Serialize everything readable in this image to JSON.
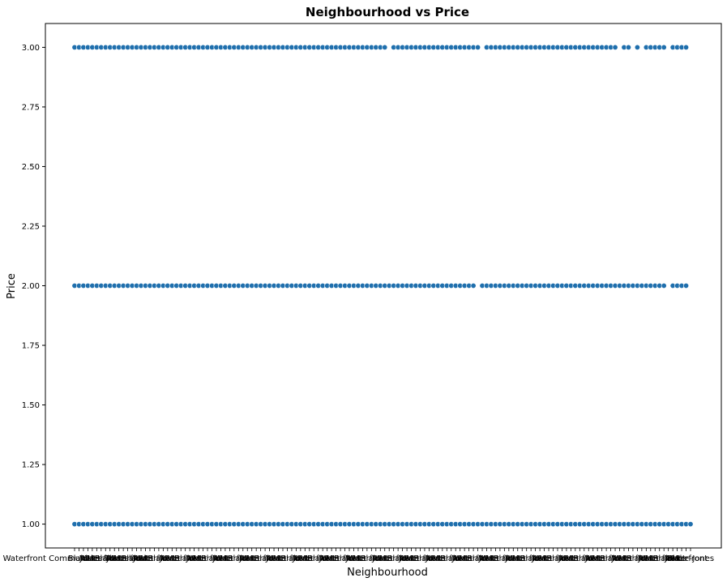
{
  "chart_data": {
    "type": "scatter",
    "title": "Neighbourhood vs Price",
    "xlabel": "Neighbourhood",
    "ylabel": "Price",
    "ylim": [
      0.9,
      3.1
    ],
    "yticks": [
      "1.00",
      "1.25",
      "1.50",
      "1.75",
      "2.00",
      "2.25",
      "2.50",
      "2.75",
      "3.00"
    ],
    "grid": false,
    "legend": "none",
    "marker_color": "#1f6fad",
    "x_category_count": 140,
    "x_first_label": "Waterfront Communities-The Island",
    "x_last_label": "Blake-Jones",
    "x_visible_label_fragments": [
      "Waterfront",
      "Blake",
      "Ja",
      "Wa",
      "Mc",
      "Lt"
    ],
    "price_levels": [
      {
        "y": 1,
        "missing_category_indices": []
      },
      {
        "y": 2,
        "missing_category_indices": [
          91,
          134,
          139
        ]
      },
      {
        "y": 3,
        "missing_category_indices": [
          71,
          92,
          123,
          126,
          128,
          134,
          139
        ]
      }
    ]
  }
}
